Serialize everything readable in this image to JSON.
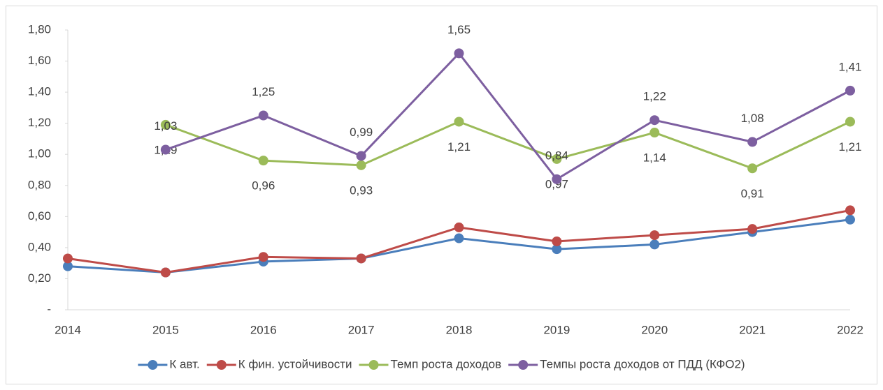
{
  "chart_data": {
    "type": "line",
    "categories": [
      "2014",
      "2015",
      "2016",
      "2017",
      "2018",
      "2019",
      "2020",
      "2021",
      "2022"
    ],
    "series": [
      {
        "name": "К авт.",
        "color": "#4a7ebb",
        "values": [
          0.28,
          0.24,
          0.31,
          0.33,
          0.46,
          0.39,
          0.42,
          0.5,
          0.58
        ]
      },
      {
        "name": "К фин. устойчивости",
        "color": "#be4b48",
        "values": [
          0.33,
          0.24,
          0.34,
          0.33,
          0.53,
          0.44,
          0.48,
          0.52,
          0.64
        ]
      },
      {
        "name": "Темп роста доходов",
        "color": "#9bbb59",
        "values": [
          null,
          1.19,
          0.96,
          0.93,
          1.21,
          0.97,
          1.14,
          0.91,
          1.21
        ],
        "value_labels": [
          null,
          "1,19",
          "0,96",
          "0,93",
          "1,21",
          "0,97",
          "1,14",
          "0,91",
          "1,21"
        ],
        "label_position": "below"
      },
      {
        "name": "Темпы роста доходов от ПДД (КФО2)",
        "color": "#7d5fa0",
        "values": [
          null,
          1.03,
          1.25,
          0.99,
          1.65,
          0.84,
          1.22,
          1.08,
          1.41
        ],
        "value_labels": [
          null,
          "1,03",
          "1,25",
          "0,99",
          "1,65",
          "0,84",
          "1,22",
          "1,08",
          "1,41"
        ],
        "label_position": "above"
      }
    ],
    "ylim": [
      0,
      1.8
    ],
    "yticks": [
      {
        "value": 0,
        "label": "-"
      },
      {
        "value": 0.2,
        "label": "0,20"
      },
      {
        "value": 0.4,
        "label": "0,40"
      },
      {
        "value": 0.6,
        "label": "0,60"
      },
      {
        "value": 0.8,
        "label": "0,80"
      },
      {
        "value": 1.0,
        "label": "1,00"
      },
      {
        "value": 1.2,
        "label": "1,20"
      },
      {
        "value": 1.4,
        "label": "1,40"
      },
      {
        "value": 1.6,
        "label": "1,60"
      },
      {
        "value": 1.8,
        "label": "1,80"
      }
    ],
    "legend": "bottom"
  }
}
